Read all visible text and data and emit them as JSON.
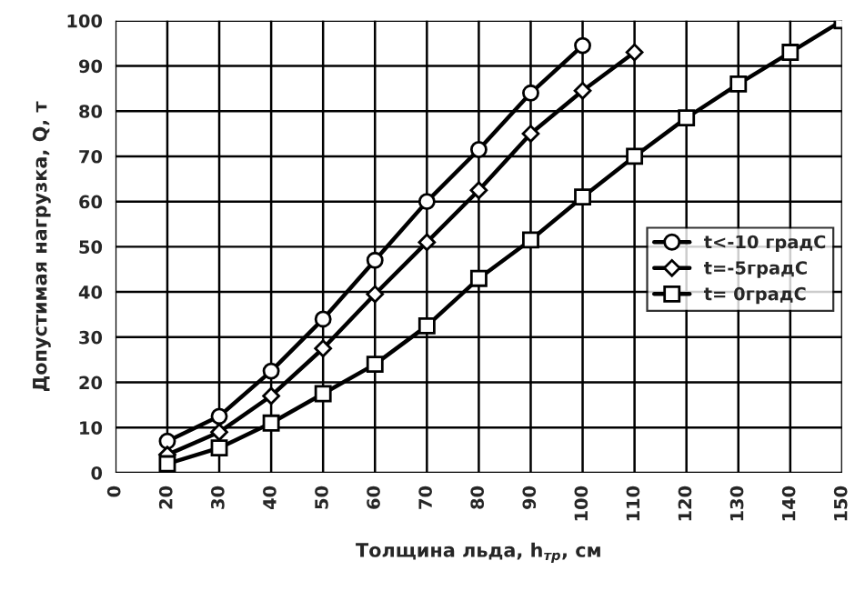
{
  "chart_data": {
    "type": "line",
    "xlabel": "Толщина льда, h$_{тр}$, см",
    "ylabel": "Допустимая нагрузка, Q, т",
    "categories": [
      "0",
      "20",
      "30",
      "40",
      "50",
      "60",
      "70",
      "80",
      "90",
      "100",
      "110",
      "120",
      "130",
      "140",
      "150"
    ],
    "series": [
      {
        "name": "t<-10 градС",
        "color": "#000000",
        "marker": "circle",
        "values": [
          null,
          7,
          12.5,
          22.5,
          34,
          47,
          60,
          71.5,
          84,
          94.5,
          null,
          null,
          null,
          null,
          null
        ]
      },
      {
        "name": "t=-5градС",
        "color": "#000000",
        "marker": "diamond",
        "values": [
          null,
          4,
          9,
          17,
          27.5,
          39.5,
          51,
          62.5,
          75,
          84.5,
          93,
          null,
          null,
          null,
          null
        ]
      },
      {
        "name": "t= 0градС",
        "color": "#000000",
        "marker": "square",
        "values": [
          null,
          2,
          5.5,
          11,
          17.5,
          24,
          32.5,
          43,
          51.5,
          61,
          70,
          78.5,
          86,
          93,
          100
        ]
      }
    ],
    "ylim": [
      0,
      100
    ],
    "yticks": [
      0,
      10,
      20,
      30,
      40,
      50,
      60,
      70,
      80,
      90,
      100
    ],
    "grid": true,
    "legend": "center right",
    "line_style": "solid"
  }
}
